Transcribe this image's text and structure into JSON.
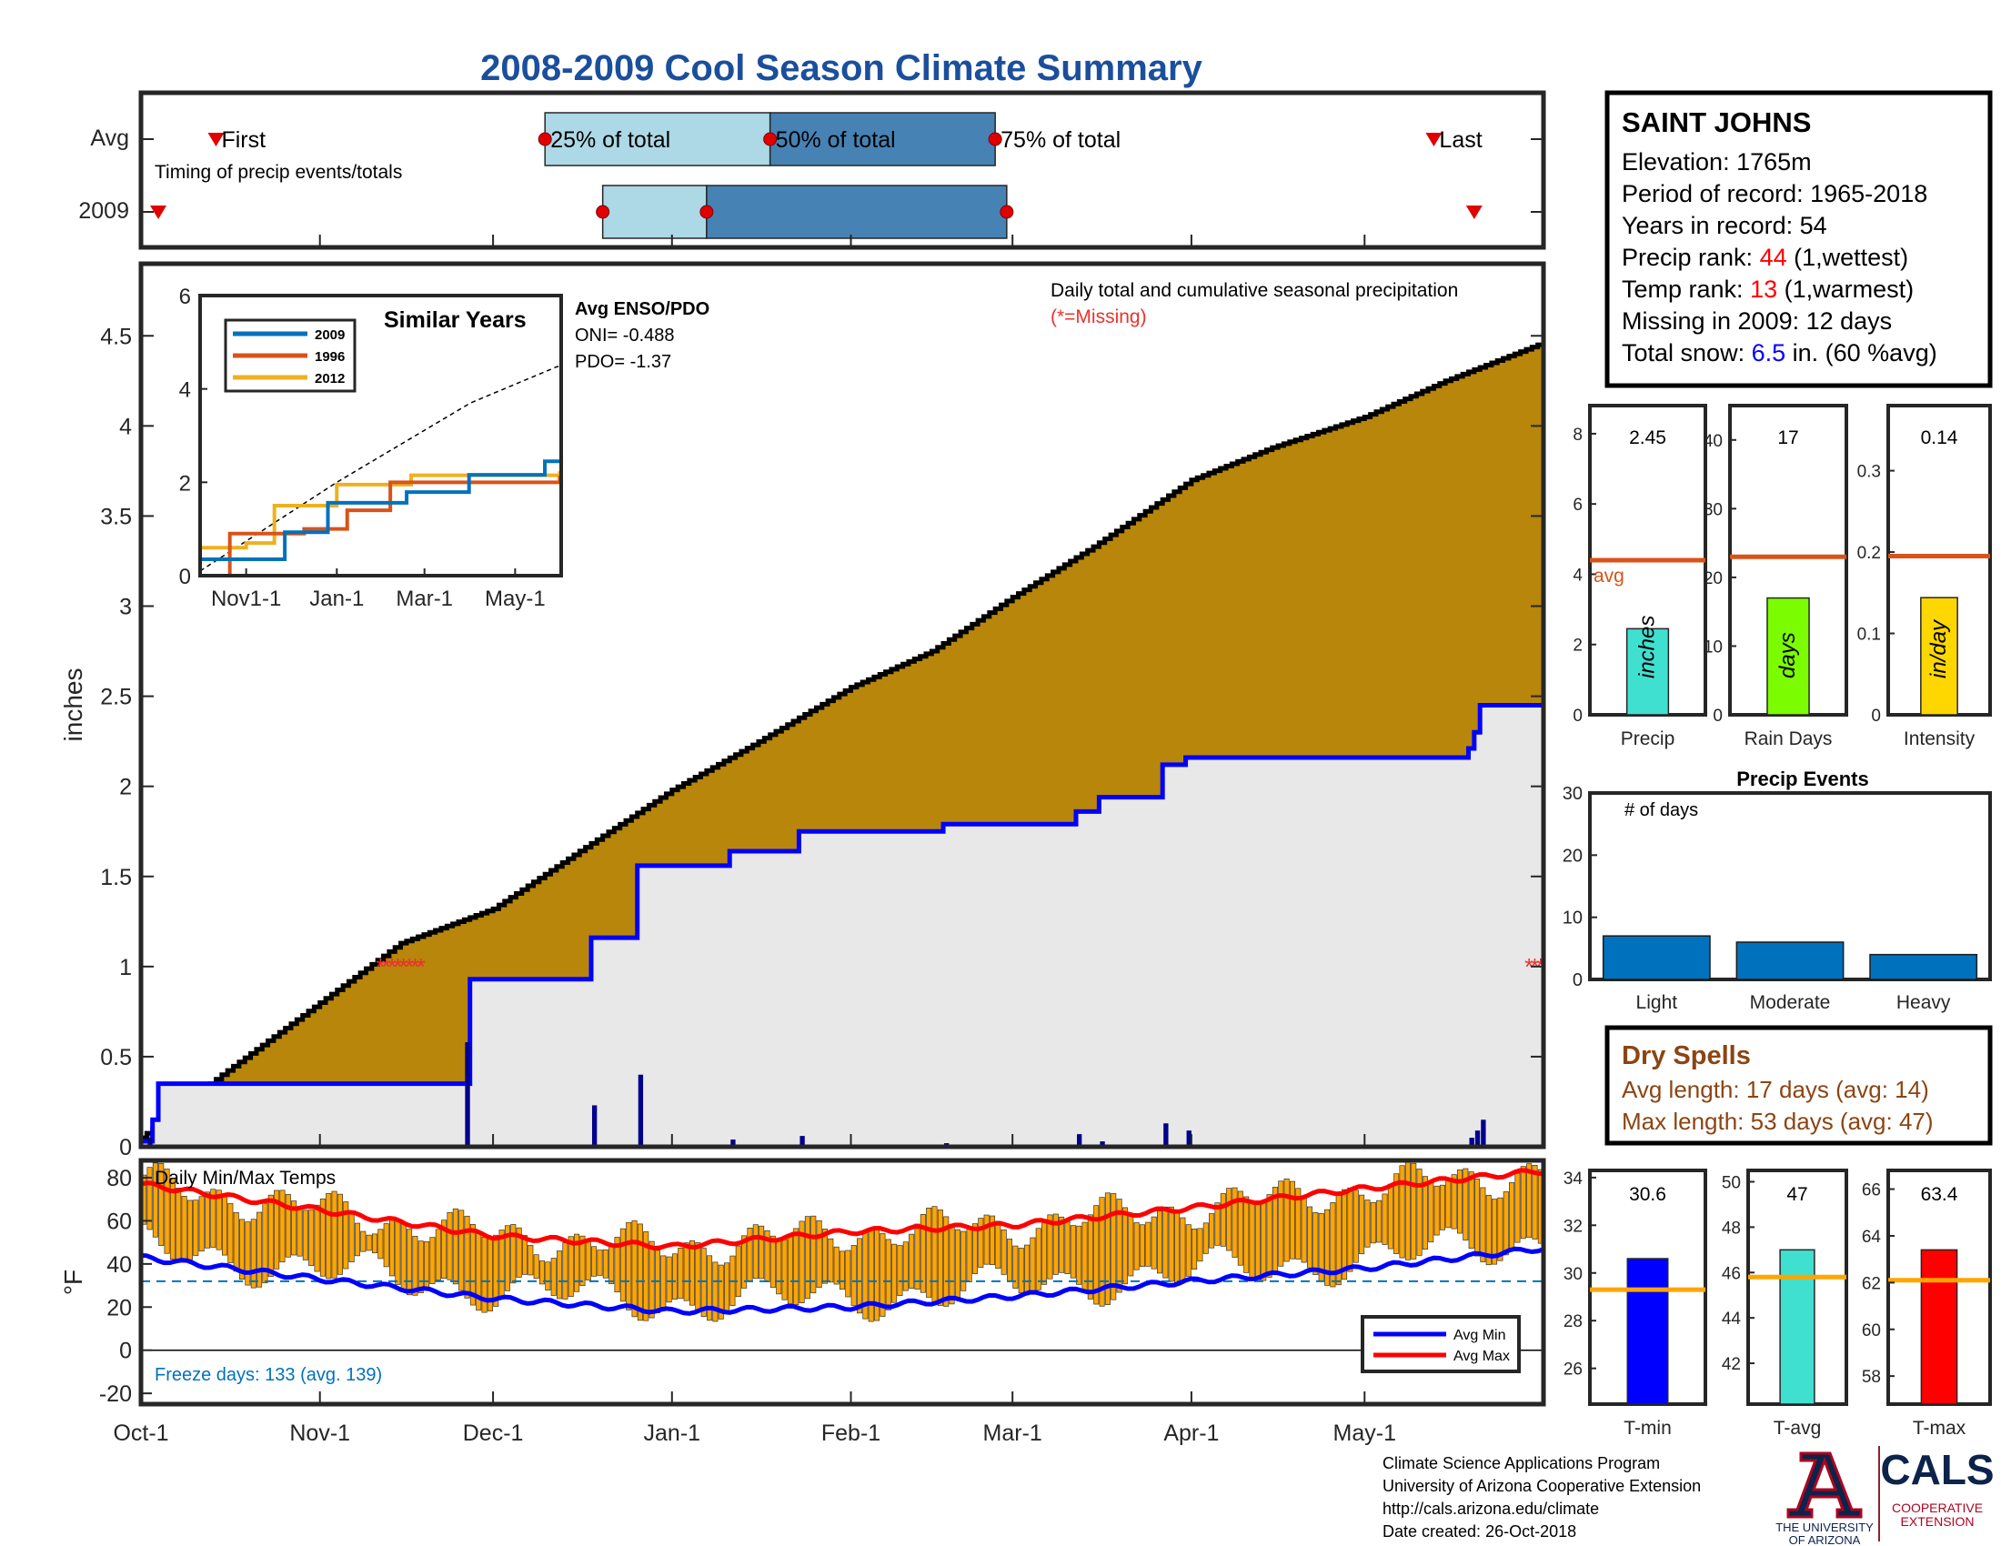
{
  "title": "2008-2009 Cool Season Climate Summary",
  "timing": {
    "row_labels": [
      "Avg",
      "2009"
    ],
    "avg_labels": [
      "First",
      "25% of total",
      "50% of total",
      "75% of total",
      "Last"
    ],
    "caption": "Timing of precip events/totals",
    "avg_days": [
      13,
      70,
      109,
      148,
      224
    ],
    "y2009_days": [
      3,
      80,
      98,
      150,
      231
    ]
  },
  "station": {
    "name": "SAINT JOHNS",
    "elevation": "Elevation: 1765m",
    "period": "Period of record: 1965-2018",
    "years": "Years in record: 54",
    "precip_rank_prefix": "Precip rank: ",
    "precip_rank_value": "44",
    "precip_rank_suffix": " (1,wettest)",
    "temp_rank_prefix": "Temp rank: ",
    "temp_rank_value": "13",
    "temp_rank_suffix": " (1,warmest)",
    "missing": "Missing in 2009: 12 days",
    "snow_prefix": "Total snow: ",
    "snow_value": "6.5",
    "snow_suffix": " in. (60 %avg)"
  },
  "main": {
    "note": "Daily total and cumulative seasonal precipitation",
    "missing_note": "(*=Missing)",
    "ylabel": "inches",
    "x_ticks": [
      "Oct-1",
      "Nov-1",
      "Dec-1",
      "Jan-1",
      "Feb-1",
      "Mar-1",
      "Apr-1",
      "May-1"
    ]
  },
  "inset": {
    "title": "Similar Years",
    "legend": [
      "2009",
      "1996",
      "2012"
    ],
    "colors": [
      "#0072bd",
      "#d95319",
      "#edb120"
    ],
    "enso_title": "Avg ENSO/PDO",
    "oni": "ONI= -0.488",
    "pdo": "PDO= -1.37",
    "x_ticks": [
      "Nov1-1",
      "Jan-1",
      "Mar-1",
      "May-1"
    ]
  },
  "temps": {
    "title": "Daily Min/Max Temps",
    "ylabel": "°F",
    "freeze": "Freeze days: 133 (avg. 139)",
    "legend": [
      "Avg Min",
      "Avg Max"
    ]
  },
  "bars": [
    {
      "value_label": "2.45",
      "unit": "inches",
      "xlabel": "Precip",
      "avg_label": "avg",
      "value": 2.45,
      "avg": 4.4,
      "ymax": 8.8,
      "ticks": [
        0,
        2,
        4,
        6,
        8
      ],
      "color": "#40e0d0"
    },
    {
      "value_label": "17",
      "unit": "days",
      "xlabel": "Rain Days",
      "value": 17,
      "avg": 23,
      "ymax": 45,
      "ticks": [
        0,
        10,
        20,
        30,
        40
      ],
      "color": "#7cfc00"
    },
    {
      "value_label": "0.14",
      "unit": "in/day",
      "xlabel": "Intensity",
      "value": 0.144,
      "avg": 0.195,
      "ymax": 0.38,
      "ticks": [
        0,
        0.1,
        0.2,
        0.3
      ],
      "color": "#ffd700"
    }
  ],
  "events": {
    "title": "Precip Events",
    "ylabel": "# of days",
    "categories": [
      "Light",
      "Moderate",
      "Heavy"
    ],
    "values": [
      7,
      6,
      4
    ],
    "ymax": 30,
    "ticks": [
      0,
      10,
      20,
      30
    ]
  },
  "dry": {
    "title": "Dry Spells",
    "avg": "Avg length: 17 days (avg: 14)",
    "max": "Max length: 53 days (avg: 47)"
  },
  "temp_bars": [
    {
      "value_label": "30.6",
      "xlabel": "T-min",
      "value": 30.6,
      "avg": 29.3,
      "ymin": 24.5,
      "ymax": 34.3,
      "ticks": [
        26,
        28,
        30,
        32,
        34
      ],
      "color": "#0000ff"
    },
    {
      "value_label": "47",
      "xlabel": "T-avg",
      "value": 47,
      "avg": 45.8,
      "ymin": 40.2,
      "ymax": 50.5,
      "ticks": [
        42,
        44,
        46,
        48,
        50
      ],
      "color": "#40e0d0"
    },
    {
      "value_label": "63.4",
      "xlabel": "T-max",
      "value": 63.4,
      "avg": 62.1,
      "ymin": 56.8,
      "ymax": 66.8,
      "ticks": [
        58,
        60,
        62,
        64,
        66
      ],
      "color": "#ff0000"
    }
  ],
  "footer": {
    "line1": "Climate Science Applications Program",
    "line2": "University of Arizona Cooperative Extension",
    "line3": "http://cals.arizona.edu/climate",
    "line4": " Date created: 26-Oct-2018",
    "ua_line1": "THE UNIVERSITY",
    "ua_line2": "OF ARIZONA",
    "cals": "CALS",
    "cals_sub1": "COOPERATIVE",
    "cals_sub2": "EXTENSION"
  },
  "chart_data": [
    {
      "type": "area",
      "title": "Daily total and cumulative seasonal precipitation",
      "ylabel": "inches",
      "ylim": [
        0,
        4.9
      ],
      "x_axis": "Oct-1 to May-31",
      "series": [
        {
          "name": "",
          "points": [
            [
              "Oct-1",
              0.05
            ],
            [
              "Oct-15",
              0.4
            ],
            [
              "Nov-1",
              0.8
            ],
            [
              "Nov-15",
              1.13
            ],
            [
              "Dec-1",
              1.32
            ],
            [
              "Dec-15",
              1.62
            ],
            [
              "Jan-1",
              1.98
            ],
            [
              "Jan-15",
              2.23
            ],
            [
              "Feb-1",
              2.55
            ],
            [
              "Feb-15",
              2.75
            ],
            [
              "Mar-1",
              3.05
            ],
            [
              "Mar-15",
              3.33
            ],
            [
              "Apr-1",
              3.7
            ],
            [
              "Apr-15",
              3.88
            ],
            [
              "May-1",
              4.05
            ],
            [
              "May-15",
              4.25
            ],
            [
              "May-31",
              4.45
            ]
          ]
        },
        {
          "name": "",
          "points": [
            [
              "Oct-4",
              0.35
            ],
            [
              "Nov-26",
              0.35
            ],
            [
              "Nov-27",
              0.93
            ],
            [
              "Dec-18",
              1.16
            ],
            [
              "Dec-26",
              1.56
            ],
            [
              "Jan-11",
              1.64
            ],
            [
              "Jan-23",
              1.75
            ],
            [
              "Feb-17",
              1.79
            ],
            [
              "Mar-12",
              1.86
            ],
            [
              "Mar-16",
              1.94
            ],
            [
              "Mar-27",
              2.12
            ],
            [
              "Mar-31",
              2.16
            ],
            [
              "May-19",
              2.21
            ],
            [
              "May-20",
              2.3
            ],
            [
              "May-21",
              2.45
            ],
            [
              "May-31",
              2.45
            ]
          ]
        }
      ],
      "daily": [
        [
          "Oct-2",
          0.05
        ],
        [
          "Nov-26",
          0.58
        ],
        [
          "Dec-18",
          0.23
        ],
        [
          "Dec-26",
          0.4
        ],
        [
          "Jan-11",
          0.04
        ],
        [
          "Jan-23",
          0.06
        ],
        [
          "Feb-17",
          0.02
        ],
        [
          "Mar-12",
          0.07
        ],
        [
          "Mar-16",
          0.03
        ],
        [
          "Mar-27",
          0.13
        ],
        [
          "Mar-31",
          0.09
        ],
        [
          "May-19",
          0.05
        ],
        [
          "May-20",
          0.09
        ],
        [
          "May-21",
          0.15
        ]
      ],
      "missing": [
        "Nov-11 to Nov-18",
        "May-29 to May-31"
      ]
    },
    {
      "type": "line",
      "title": "Similar Years",
      "ylim": [
        0,
        6
      ],
      "series": [
        {
          "name": "2009",
          "points": [
            [
              "Oct-1",
              0.35
            ],
            [
              "Nov-27",
              0.93
            ],
            [
              "Dec-26",
              1.56
            ],
            [
              "Feb-17",
              1.79
            ],
            [
              "Mar-31",
              2.16
            ],
            [
              "May-21",
              2.45
            ]
          ]
        },
        {
          "name": "1996",
          "points": [
            [
              "Oct-1",
              0.0
            ],
            [
              "Oct-20",
              0.0
            ],
            [
              "Oct-21",
              0.9
            ],
            [
              "Dec-10",
              1.0
            ],
            [
              "Jan-8",
              1.4
            ],
            [
              "Feb-6",
              2.0
            ],
            [
              "May-31",
              2.1
            ]
          ]
        },
        {
          "name": "2012",
          "points": [
            [
              "Oct-1",
              0.6
            ],
            [
              "Nov-1",
              0.7
            ],
            [
              "Nov-20",
              1.5
            ],
            [
              "Jan-1",
              1.95
            ],
            [
              "Feb-20",
              2.15
            ],
            [
              "May-31",
              2.2
            ]
          ]
        },
        {
          "name": "",
          "points": [
            [
              "Oct-1",
              0.1
            ],
            [
              "Jan-1",
              2.0
            ],
            [
              "Apr-1",
              3.7
            ],
            [
              "May-31",
              4.5
            ]
          ]
        }
      ]
    },
    {
      "type": "bar",
      "title": "Daily Min/Max Temps",
      "ylabel": "°F",
      "ylim": [
        -25,
        88
      ],
      "series": [
        {
          "name": "Avg Max",
          "points": [
            [
              "Oct-1",
              77
            ],
            [
              "Nov-1",
              65
            ],
            [
              "Dec-1",
              53
            ],
            [
              "Jan-1",
              48
            ],
            [
              "Feb-1",
              55
            ],
            [
              "Mar-1",
              58
            ],
            [
              "Apr-1",
              66
            ],
            [
              "May-1",
              75
            ],
            [
              "May-31",
              83
            ]
          ]
        },
        {
          "name": "Avg Min",
          "points": [
            [
              "Oct-1",
              43
            ],
            [
              "Nov-1",
              33
            ],
            [
              "Dec-1",
              24
            ],
            [
              "Jan-1",
              18
            ],
            [
              "Feb-1",
              20
            ],
            [
              "Mar-1",
              25
            ],
            [
              "Apr-1",
              32
            ],
            [
              "May-1",
              38
            ],
            [
              "May-31",
              47
            ]
          ]
        }
      ],
      "freeze_line": 32
    }
  ]
}
